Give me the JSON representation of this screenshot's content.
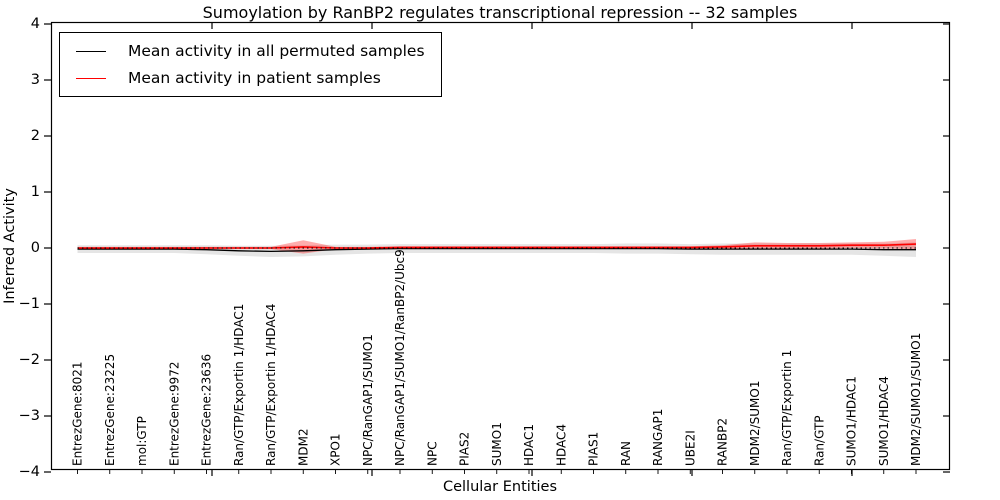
{
  "chart_data": {
    "type": "line",
    "title": "Sumoylation by RanBP2 regulates transcriptional repression -- 32 samples",
    "xlabel": "Cellular Entities",
    "ylabel": "Inferred Activity",
    "ylim": [
      -4,
      4
    ],
    "y_ticks": [
      4,
      3,
      2,
      1,
      0,
      -1,
      -2,
      -3,
      -4
    ],
    "grid": false,
    "legend_position": "upper left",
    "zero_line_style": "dotted-black",
    "categories": [
      "EntrezGene:8021",
      "EntrezGene:23225",
      "mol:GTP",
      "EntrezGene:9972",
      "EntrezGene:23636",
      "Ran/GTP/Exportin 1/HDAC1",
      "Ran/GTP/Exportin 1/HDAC4",
      "MDM2",
      "XPO1",
      "NPC/RanGAP1/SUMO1",
      "NPC/RanGAP1/SUMO1/RanBP2/Ubc9",
      "NPC",
      "PIAS2",
      "SUMO1",
      "HDAC1",
      "HDAC4",
      "PIAS1",
      "RAN",
      "RANGAP1",
      "UBE2I",
      "RANBP2",
      "MDM2/SUMO1",
      "Ran/GTP/Exportin 1",
      "Ran/GTP",
      "SUMO1/HDAC1",
      "SUMO1/HDAC4",
      "MDM2/SUMO1/SUMO1"
    ],
    "series": [
      {
        "name": "Mean activity in all permuted samples",
        "color": "#000000",
        "band_color": "#000000",
        "band_opacity": 0.1,
        "values": [
          -0.02,
          -0.02,
          -0.02,
          -0.02,
          -0.03,
          -0.05,
          -0.06,
          -0.05,
          -0.03,
          -0.02,
          -0.01,
          -0.01,
          -0.01,
          -0.01,
          -0.01,
          -0.01,
          -0.01,
          -0.01,
          -0.01,
          -0.02,
          -0.02,
          -0.02,
          -0.02,
          -0.02,
          -0.02,
          -0.03,
          -0.03
        ],
        "band": [
          0.07,
          0.07,
          0.07,
          0.07,
          0.08,
          0.09,
          0.1,
          0.1,
          0.09,
          0.08,
          0.08,
          0.08,
          0.08,
          0.08,
          0.08,
          0.08,
          0.08,
          0.09,
          0.09,
          0.09,
          0.1,
          0.1,
          0.1,
          0.1,
          0.1,
          0.11,
          0.13
        ]
      },
      {
        "name": "Mean activity in patient samples",
        "color": "#ff0000",
        "band_color": "#ff0000",
        "band_opacity": 0.32,
        "values": [
          0,
          0,
          0,
          0,
          0,
          0,
          0,
          0.02,
          0,
          0,
          0.01,
          0.01,
          0.01,
          0.01,
          0.01,
          0.01,
          0.01,
          0.01,
          0.01,
          0.01,
          0.02,
          0.04,
          0.04,
          0.04,
          0.05,
          0.05,
          0.07
        ],
        "band": [
          0.02,
          0.02,
          0.02,
          0.02,
          0.02,
          0.02,
          0.02,
          0.12,
          0.02,
          0.02,
          0.02,
          0.02,
          0.02,
          0.02,
          0.02,
          0.02,
          0.02,
          0.02,
          0.02,
          0.02,
          0.03,
          0.06,
          0.05,
          0.05,
          0.05,
          0.06,
          0.09
        ]
      }
    ]
  }
}
